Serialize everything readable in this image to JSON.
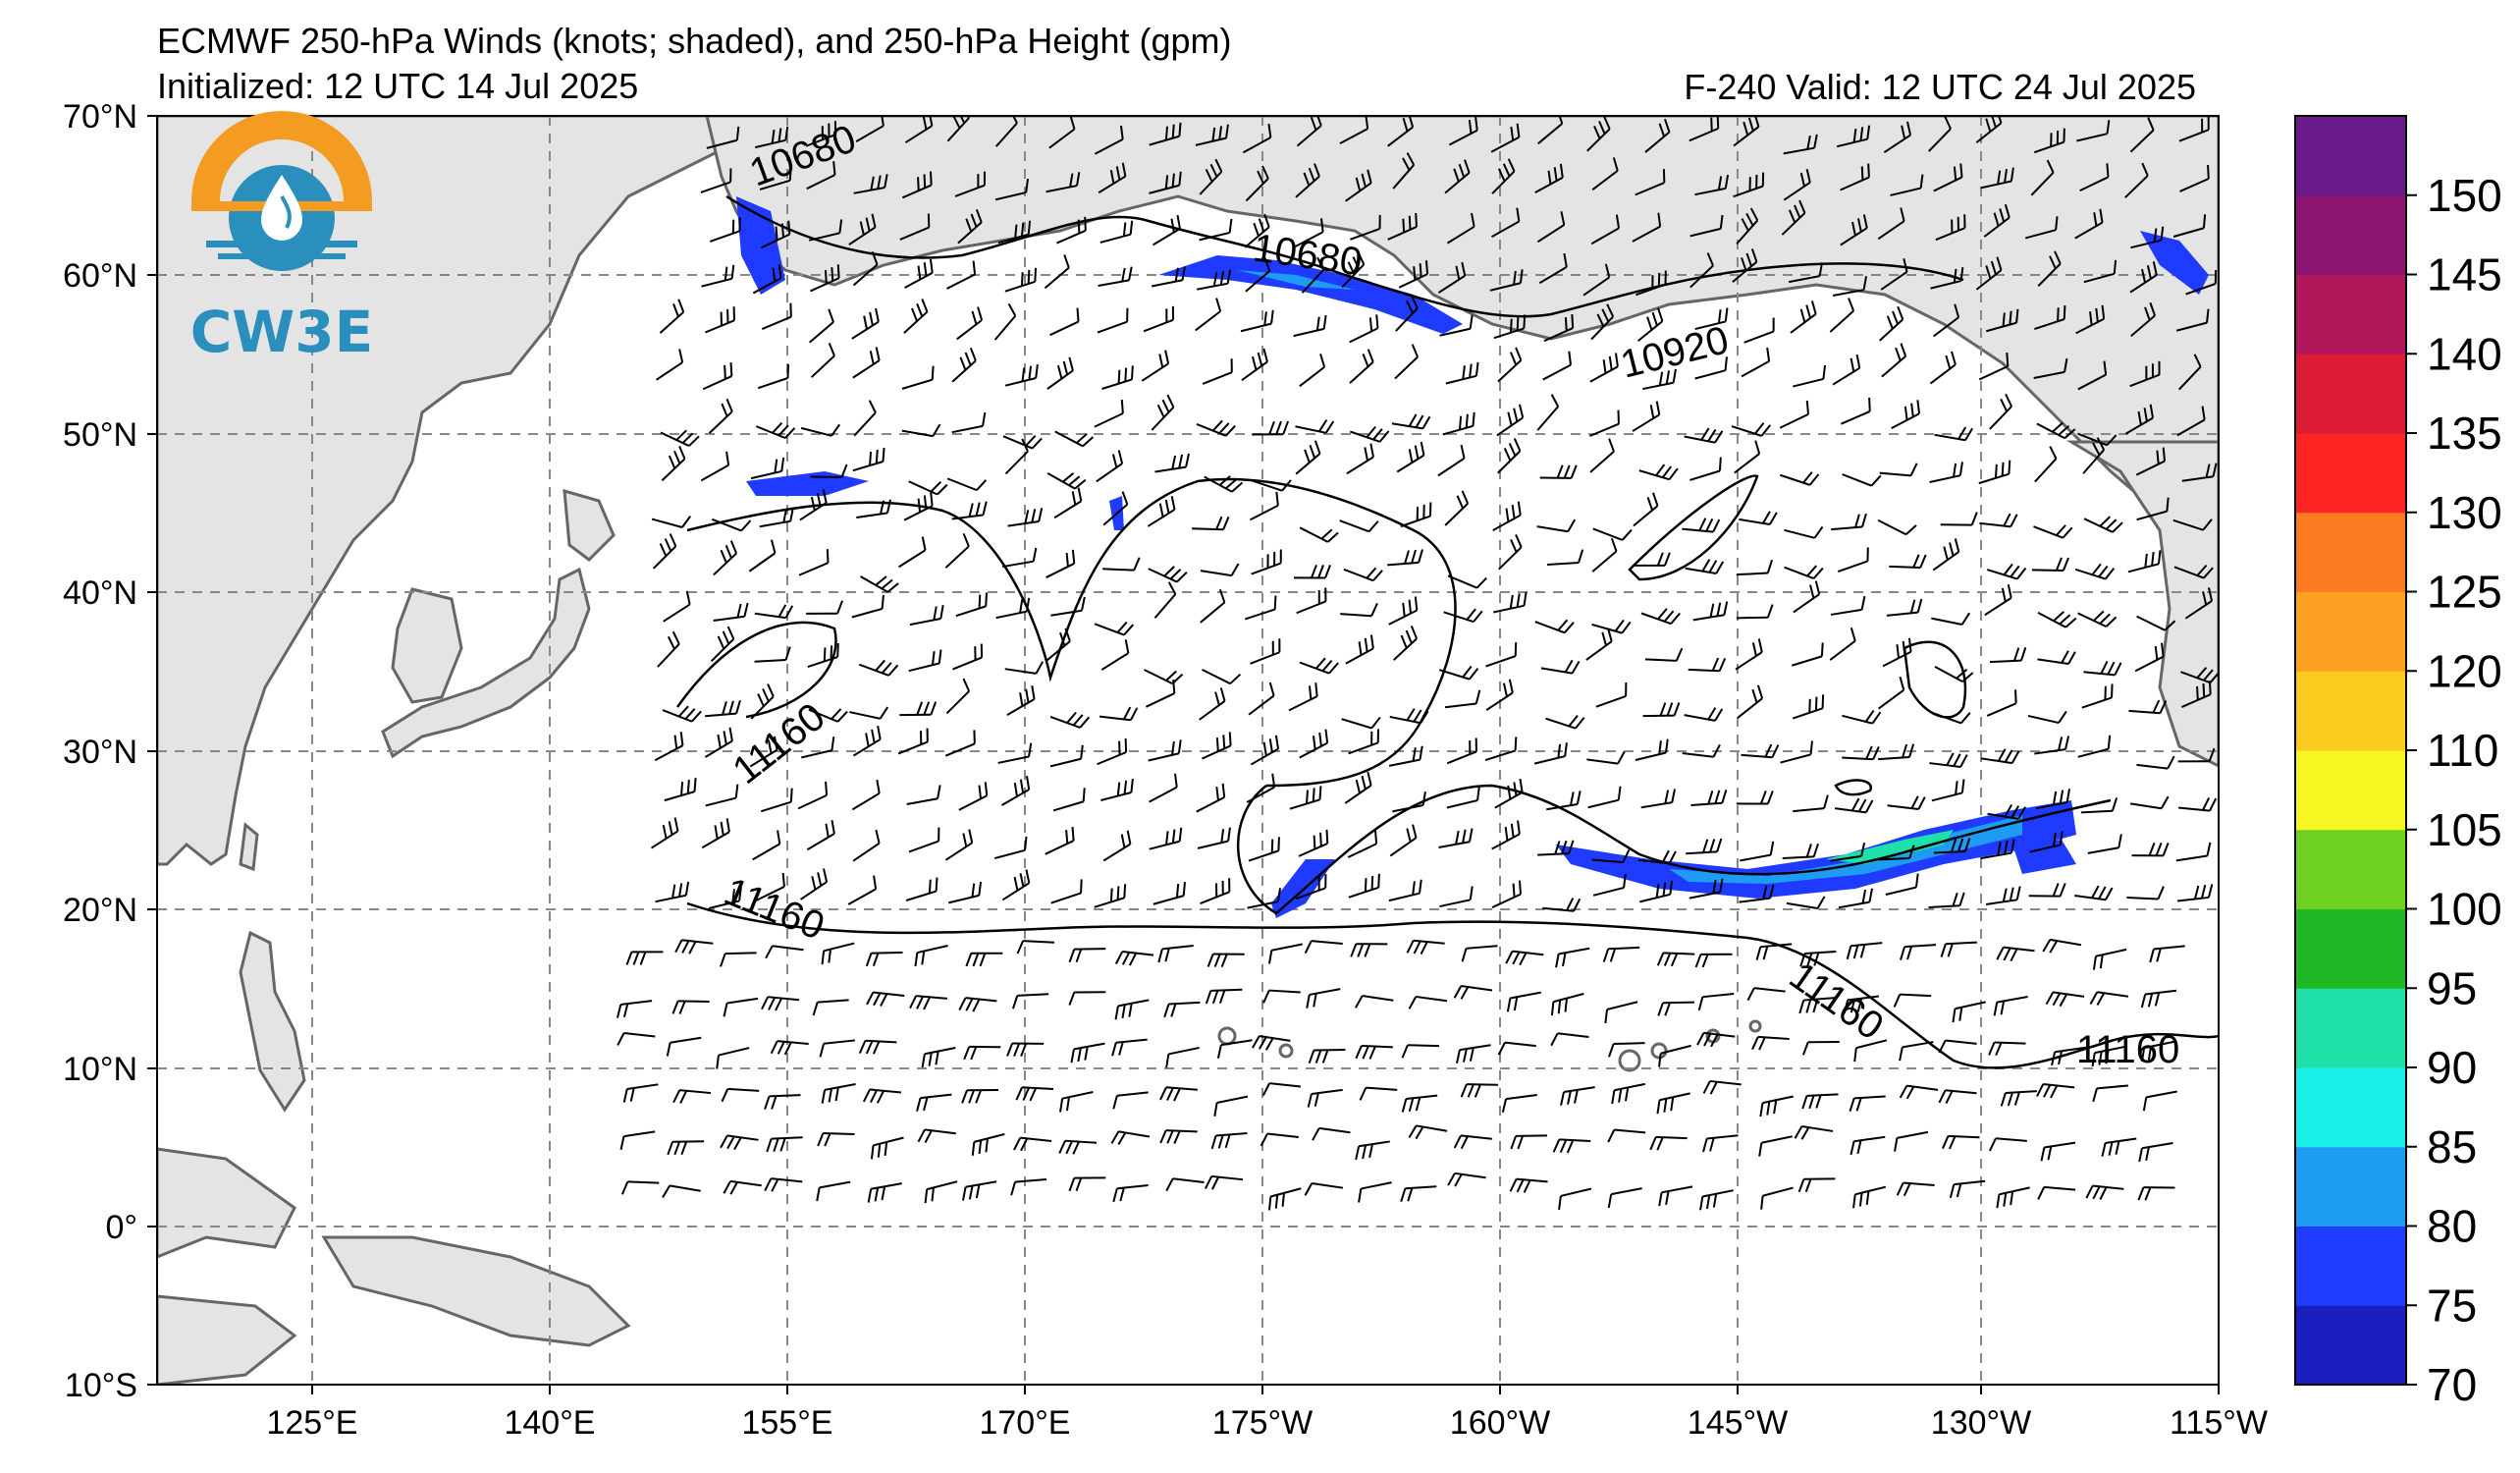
{
  "title_line1": "ECMWF 250-hPa Winds (knots; shaded), and 250-hPa Height (gpm)",
  "title_line2": "Initialized: 12 UTC 14 Jul 2025",
  "title_right": "F-240  Valid: 12 UTC 24 Jul 2025",
  "logo": {
    "text": "CW3E",
    "icon": "water-drop-sun-logo",
    "colors": [
      "#f39c21",
      "#2a8fbd"
    ]
  },
  "lat_labels": [
    "70°N",
    "60°N",
    "50°N",
    "40°N",
    "30°N",
    "20°N",
    "10°N",
    "0°",
    "10°S"
  ],
  "lon_labels": [
    "125°E",
    "140°E",
    "155°E",
    "170°E",
    "175°W",
    "160°W",
    "145°W",
    "130°W",
    "115°W"
  ],
  "colorbar": {
    "ticks": [
      "150",
      "145",
      "140",
      "135",
      "130",
      "125",
      "120",
      "110",
      "105",
      "100",
      "95",
      "90",
      "85",
      "80",
      "75",
      "70"
    ],
    "colors": [
      "#1b1fbe",
      "#1f3bff",
      "#1e9cf4",
      "#18f0e8",
      "#1ee0a8",
      "#20b825",
      "#6ed020",
      "#f6f622",
      "#fbcb1f",
      "#fca121",
      "#fb7a22",
      "#fc2323",
      "#dc1b37",
      "#b2165b",
      "#8d1472",
      "#6a1a8a"
    ]
  },
  "contour_labels": [
    {
      "text": "10680"
    },
    {
      "text": "10680"
    },
    {
      "text": "10920"
    },
    {
      "text": "11160"
    },
    {
      "text": "11160"
    },
    {
      "text": "11160"
    },
    {
      "text": "11160"
    }
  ],
  "map_colors": {
    "land": "#e4e4e4",
    "coast": "#666666",
    "grid": "#888888"
  }
}
